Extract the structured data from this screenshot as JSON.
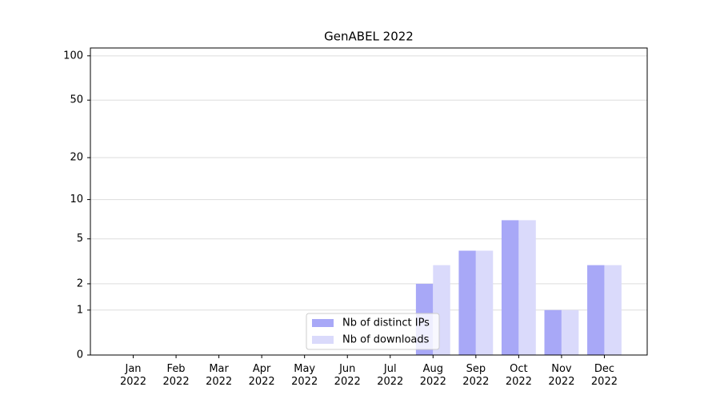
{
  "chart_data": {
    "type": "bar",
    "title": "GenABEL 2022",
    "categories": [
      "Jan 2022",
      "Feb 2022",
      "Mar 2022",
      "Apr 2022",
      "May 2022",
      "Jun 2022",
      "Jul 2022",
      "Aug 2022",
      "Sep 2022",
      "Oct 2022",
      "Nov 2022",
      "Dec 2022"
    ],
    "series": [
      {
        "name": "Nb of distinct IPs",
        "color": "#a8a8f7",
        "values": [
          0,
          0,
          0,
          0,
          0,
          0,
          0,
          2,
          4,
          7,
          1,
          3
        ]
      },
      {
        "name": "Nb of downloads",
        "color": "#dadafb",
        "values": [
          0,
          0,
          0,
          0,
          0,
          0,
          0,
          3,
          4,
          7,
          1,
          3
        ]
      }
    ],
    "yscale": "log1p",
    "ylim": [
      0,
      113
    ],
    "yticks": [
      0,
      1,
      2,
      5,
      10,
      20,
      50,
      100
    ],
    "grid": true,
    "legend": "lower center"
  }
}
